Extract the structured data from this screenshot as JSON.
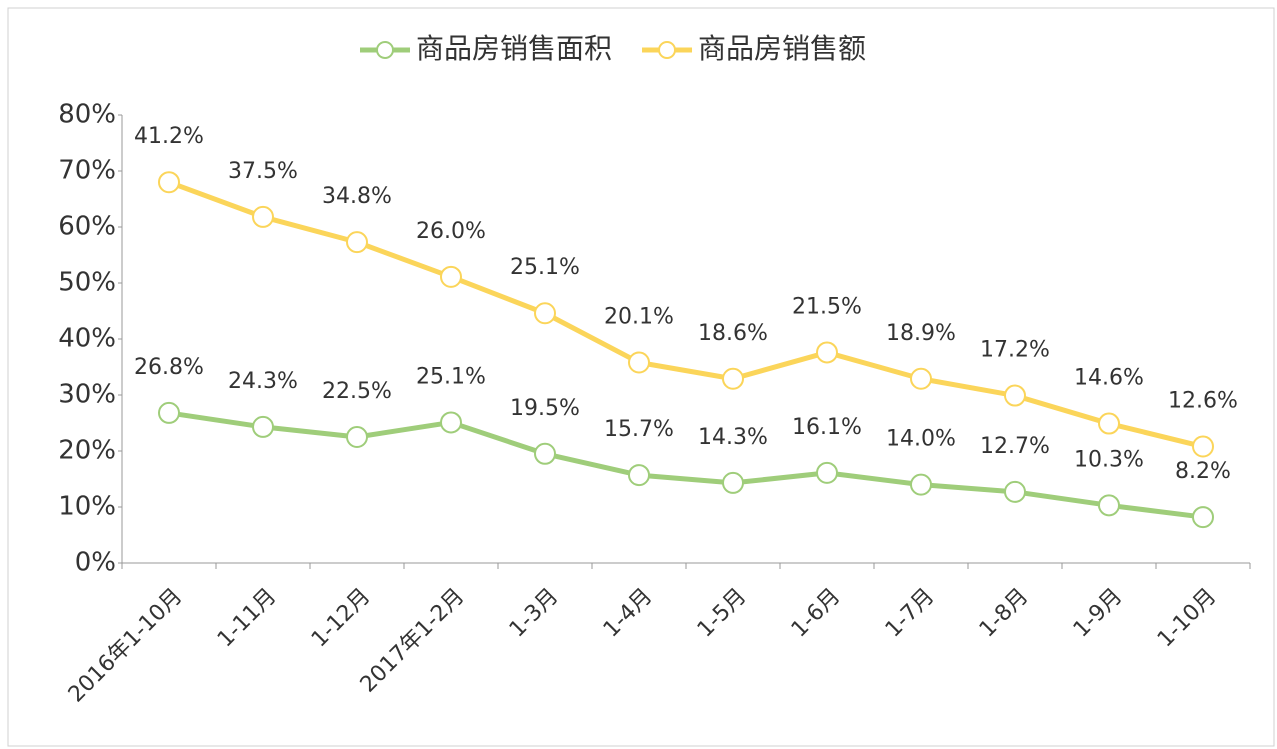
{
  "chart_data": {
    "type": "line",
    "stacked": true,
    "categories": [
      "2016年1-10月",
      "1-11月",
      "1-12月",
      "2017年1-2月",
      "1-3月",
      "1-4月",
      "1-5月",
      "1-6月",
      "1-7月",
      "1-8月",
      "1-9月",
      "1-10月"
    ],
    "series": [
      {
        "name": "商品房销售面积",
        "color": "#9fcd7a",
        "values": [
          26.8,
          24.3,
          22.5,
          25.1,
          19.5,
          15.7,
          14.3,
          16.1,
          14.0,
          12.7,
          10.3,
          8.2
        ],
        "value_labels": [
          "26.8%",
          "24.3%",
          "22.5%",
          "25.1%",
          "19.5%",
          "15.7%",
          "14.3%",
          "16.1%",
          "14.0%",
          "12.7%",
          "10.3%",
          "8.2%"
        ]
      },
      {
        "name": "商品房销售额",
        "color": "#fbd55a",
        "values": [
          41.2,
          37.5,
          34.8,
          26.0,
          25.1,
          20.1,
          18.6,
          21.5,
          18.9,
          17.2,
          14.6,
          12.6
        ],
        "value_labels": [
          "41.2%",
          "37.5%",
          "34.8%",
          "26.0%",
          "25.1%",
          "20.1%",
          "18.6%",
          "21.5%",
          "18.9%",
          "17.2%",
          "14.6%",
          "12.6%"
        ]
      }
    ],
    "ylim": [
      0,
      80
    ],
    "yticks": [
      {
        "value": 0,
        "label": "0%"
      },
      {
        "value": 10,
        "label": "10%"
      },
      {
        "value": 20,
        "label": "20%"
      },
      {
        "value": 30,
        "label": "30%"
      },
      {
        "value": 40,
        "label": "40%"
      },
      {
        "value": 50,
        "label": "50%"
      },
      {
        "value": 60,
        "label": "60%"
      },
      {
        "value": 70,
        "label": "70%"
      },
      {
        "value": 80,
        "label": "80%"
      }
    ],
    "legend": "top",
    "grid": false
  }
}
